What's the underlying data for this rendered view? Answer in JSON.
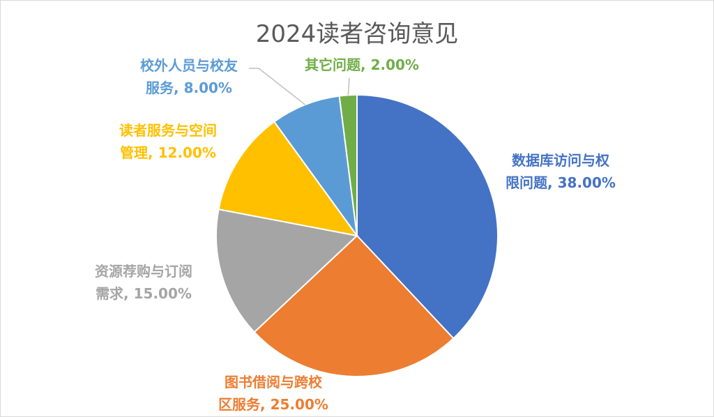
{
  "chart_data": {
    "type": "pie",
    "title": "2024读者咨询意见",
    "slices": [
      {
        "label": "数据库访问与权限问题",
        "value": 38.0,
        "display": "38.00%",
        "label_lines": [
          "数据库访问与权",
          "限问题, 38.00%"
        ],
        "color": "#4472C4"
      },
      {
        "label": "图书借阅与跨校区服务",
        "value": 25.0,
        "display": "25.00%",
        "label_lines": [
          "图书借阅与跨校",
          "区服务, 25.00%"
        ],
        "color": "#ED7D31"
      },
      {
        "label": "资源荐购与订阅需求",
        "value": 15.0,
        "display": "15.00%",
        "label_lines": [
          "资源荐购与订阅",
          "需求, 15.00%"
        ],
        "color": "#A5A5A5"
      },
      {
        "label": "读者服务与空间管理",
        "value": 12.0,
        "display": "12.00%",
        "label_lines": [
          "读者服务与空间",
          "管理, 12.00%"
        ],
        "color": "#FFC000"
      },
      {
        "label": "校外人员与校友服务",
        "value": 8.0,
        "display": "8.00%",
        "label_lines": [
          "校外人员与校友",
          "服务, 8.00%"
        ],
        "color": "#5B9BD5"
      },
      {
        "label": "其它问题",
        "value": 2.0,
        "display": "2.00%",
        "label_lines": [
          "其它问题, 2.00%"
        ],
        "color": "#70AD47"
      }
    ],
    "start_angle": "12 o'clock",
    "direction": "clockwise",
    "legend": "none"
  }
}
